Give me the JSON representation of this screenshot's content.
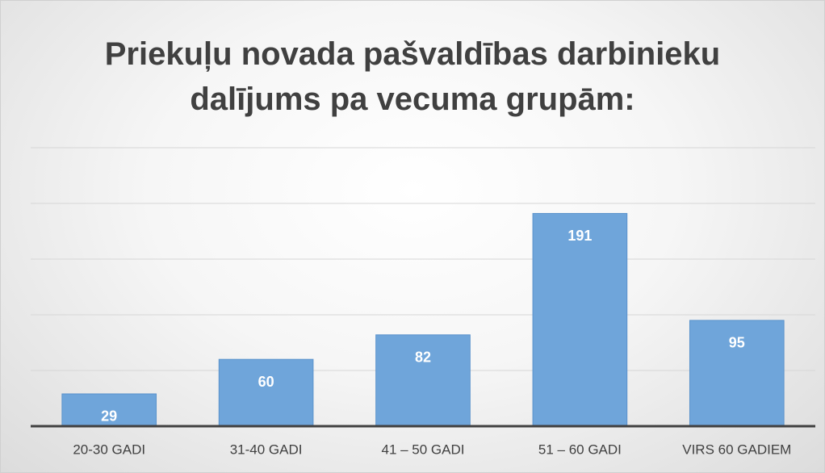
{
  "chart_data": {
    "type": "bar",
    "title": "Priekuļu novada pašvaldības darbinieku dalījums pa vecuma grupām:",
    "categories": [
      "20-30 GADI",
      "31-40 GADI",
      "41 – 50 GADI",
      "51 – 60 GADI",
      "VIRS 60 GADIEM"
    ],
    "values": [
      29,
      60,
      82,
      191,
      95
    ],
    "color": "#6fa5da",
    "ylim": [
      0,
      250
    ],
    "yticks": [
      0,
      50,
      100,
      150,
      200,
      250
    ],
    "grid": true
  }
}
